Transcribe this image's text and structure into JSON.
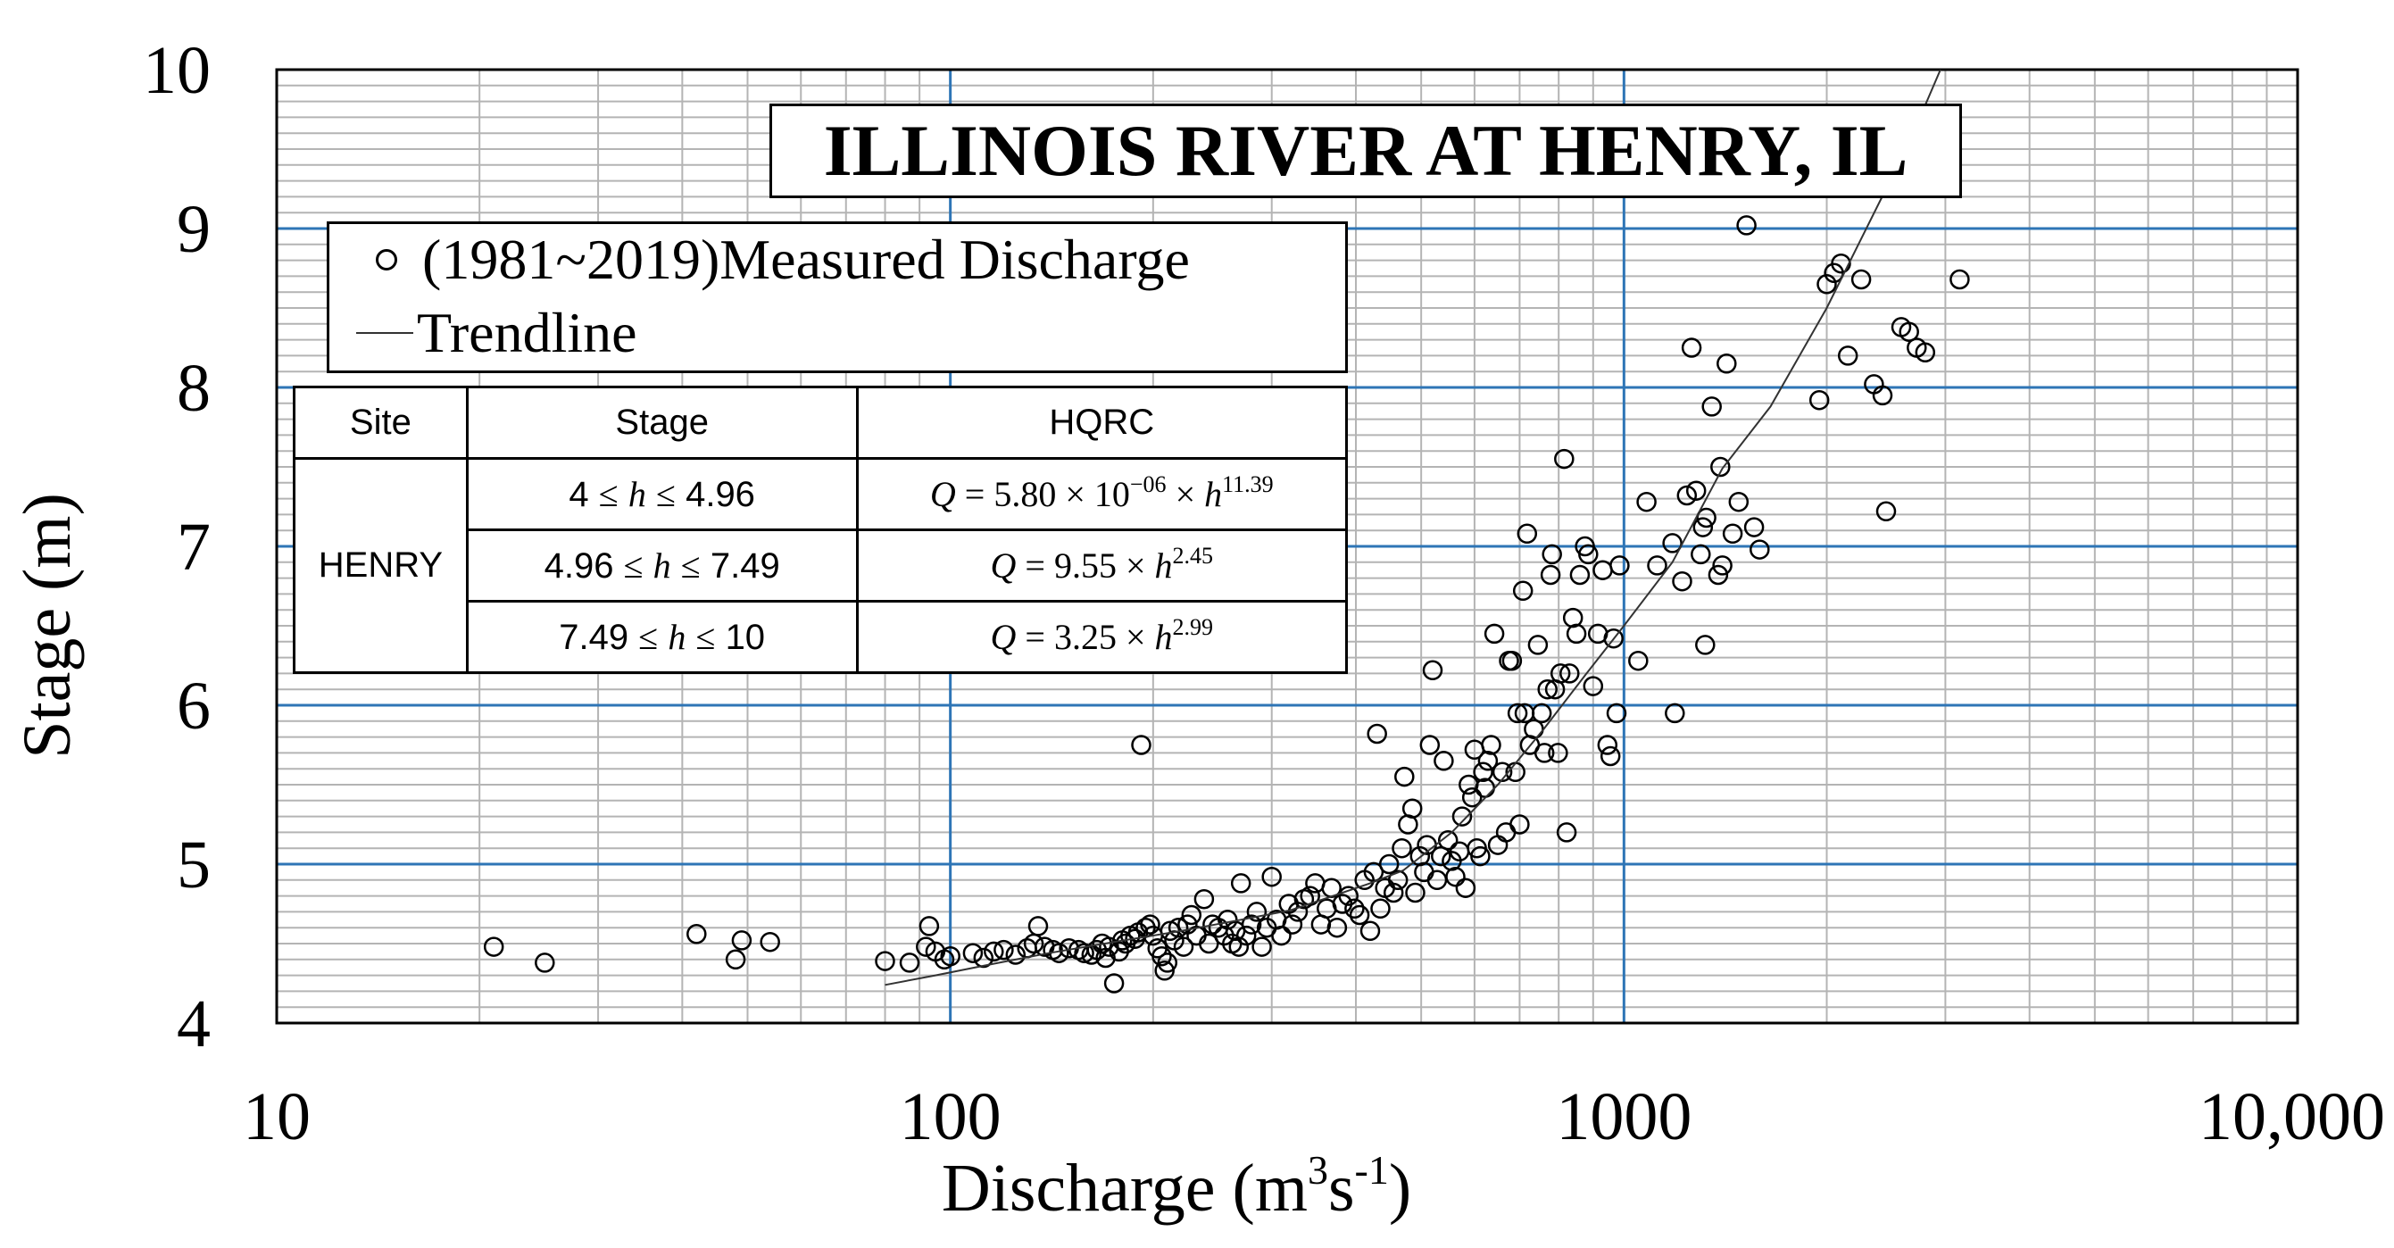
{
  "chart_data": {
    "type": "scatter",
    "title": "ILLINOIS RIVER AT HENRY, IL",
    "xlabel": "Discharge (m³s⁻¹)",
    "xlabel_parts": {
      "main": "Discharge (m",
      "sup1": "3",
      "mid": "s",
      "sup2": "-1",
      "end": ")"
    },
    "ylabel": "Stage (m)",
    "xscale": "log",
    "xlim": [
      10,
      10000
    ],
    "ylim": [
      4,
      10
    ],
    "x_ticks": [
      {
        "value": 10,
        "label": "10"
      },
      {
        "value": 100,
        "label": "100"
      },
      {
        "value": 1000,
        "label": "1000"
      },
      {
        "value": 10000,
        "label": "10,000"
      }
    ],
    "y_ticks": [
      {
        "value": 4,
        "label": "4"
      },
      {
        "value": 5,
        "label": "5"
      },
      {
        "value": 6,
        "label": "6"
      },
      {
        "value": 7,
        "label": "7"
      },
      {
        "value": 8,
        "label": "8"
      },
      {
        "value": 9,
        "label": "9"
      },
      {
        "value": 10,
        "label": "10"
      }
    ],
    "grid": true,
    "minor_y_step": 0.1,
    "colors": {
      "major_grid": "#2e75b6",
      "minor_grid": "#b4b4b4",
      "marker": "#000000",
      "trendline": "#333333"
    },
    "legend_position": "upper-left",
    "series": [
      {
        "name": "(1981~2019)Measured Discharge",
        "kind": "scatter",
        "points": [
          [
            21,
            4.48
          ],
          [
            25,
            4.38
          ],
          [
            42,
            4.56
          ],
          [
            48,
            4.4
          ],
          [
            49,
            4.52
          ],
          [
            54,
            4.51
          ],
          [
            80,
            4.39
          ],
          [
            87,
            4.38
          ],
          [
            92,
            4.48
          ],
          [
            93,
            4.61
          ],
          [
            95,
            4.45
          ],
          [
            98,
            4.4
          ],
          [
            100,
            4.42
          ],
          [
            108,
            4.44
          ],
          [
            112,
            4.41
          ],
          [
            116,
            4.45
          ],
          [
            120,
            4.46
          ],
          [
            125,
            4.43
          ],
          [
            130,
            4.47
          ],
          [
            133,
            4.5
          ],
          [
            135,
            4.61
          ],
          [
            138,
            4.48
          ],
          [
            142,
            4.46
          ],
          [
            145,
            4.44
          ],
          [
            150,
            4.47
          ],
          [
            155,
            4.46
          ],
          [
            158,
            4.44
          ],
          [
            162,
            4.43
          ],
          [
            165,
            4.46
          ],
          [
            168,
            4.5
          ],
          [
            170,
            4.41
          ],
          [
            172,
            4.48
          ],
          [
            175,
            4.25
          ],
          [
            178,
            4.45
          ],
          [
            180,
            4.52
          ],
          [
            182,
            4.5
          ],
          [
            185,
            4.55
          ],
          [
            188,
            4.53
          ],
          [
            190,
            4.57
          ],
          [
            192,
            5.75
          ],
          [
            195,
            4.6
          ],
          [
            198,
            4.62
          ],
          [
            200,
            4.55
          ],
          [
            203,
            4.47
          ],
          [
            206,
            4.42
          ],
          [
            208,
            4.33
          ],
          [
            210,
            4.38
          ],
          [
            212,
            4.58
          ],
          [
            215,
            4.52
          ],
          [
            218,
            4.6
          ],
          [
            222,
            4.48
          ],
          [
            225,
            4.62
          ],
          [
            228,
            4.68
          ],
          [
            232,
            4.55
          ],
          [
            238,
            4.78
          ],
          [
            242,
            4.5
          ],
          [
            245,
            4.62
          ],
          [
            250,
            4.6
          ],
          [
            255,
            4.55
          ],
          [
            258,
            4.65
          ],
          [
            262,
            4.5
          ],
          [
            265,
            4.58
          ],
          [
            268,
            4.48
          ],
          [
            270,
            4.88
          ],
          [
            275,
            4.55
          ],
          [
            280,
            4.62
          ],
          [
            285,
            4.7
          ],
          [
            290,
            4.48
          ],
          [
            295,
            4.6
          ],
          [
            300,
            4.92
          ],
          [
            305,
            4.65
          ],
          [
            310,
            4.55
          ],
          [
            318,
            4.75
          ],
          [
            322,
            4.62
          ],
          [
            328,
            4.7
          ],
          [
            335,
            4.78
          ],
          [
            342,
            4.8
          ],
          [
            348,
            4.88
          ],
          [
            355,
            4.62
          ],
          [
            362,
            4.72
          ],
          [
            368,
            4.85
          ],
          [
            375,
            4.6
          ],
          [
            382,
            4.75
          ],
          [
            390,
            4.8
          ],
          [
            398,
            4.72
          ],
          [
            405,
            4.68
          ],
          [
            412,
            4.9
          ],
          [
            420,
            4.58
          ],
          [
            425,
            4.95
          ],
          [
            430,
            5.82
          ],
          [
            435,
            4.72
          ],
          [
            442,
            4.85
          ],
          [
            448,
            5.0
          ],
          [
            455,
            4.82
          ],
          [
            462,
            4.9
          ],
          [
            468,
            5.1
          ],
          [
            472,
            5.55
          ],
          [
            478,
            5.25
          ],
          [
            485,
            5.35
          ],
          [
            490,
            4.82
          ],
          [
            498,
            5.05
          ],
          [
            505,
            4.95
          ],
          [
            510,
            5.12
          ],
          [
            515,
            5.75
          ],
          [
            520,
            6.22
          ],
          [
            528,
            4.9
          ],
          [
            535,
            5.05
          ],
          [
            540,
            5.65
          ],
          [
            548,
            5.15
          ],
          [
            555,
            5.02
          ],
          [
            562,
            4.92
          ],
          [
            570,
            5.08
          ],
          [
            575,
            5.3
          ],
          [
            582,
            4.85
          ],
          [
            588,
            5.5
          ],
          [
            595,
            5.42
          ],
          [
            600,
            5.72
          ],
          [
            605,
            5.1
          ],
          [
            612,
            5.05
          ],
          [
            618,
            5.58
          ],
          [
            622,
            5.48
          ],
          [
            628,
            5.65
          ],
          [
            635,
            5.75
          ],
          [
            642,
            6.45
          ],
          [
            650,
            5.12
          ],
          [
            660,
            5.58
          ],
          [
            668,
            5.2
          ],
          [
            675,
            6.28
          ],
          [
            682,
            6.28
          ],
          [
            690,
            5.58
          ],
          [
            695,
            5.95
          ],
          [
            700,
            5.25
          ],
          [
            708,
            6.72
          ],
          [
            712,
            5.95
          ],
          [
            718,
            7.08
          ],
          [
            725,
            5.75
          ],
          [
            735,
            5.85
          ],
          [
            745,
            6.38
          ],
          [
            755,
            5.95
          ],
          [
            762,
            5.7
          ],
          [
            770,
            6.1
          ],
          [
            778,
            6.82
          ],
          [
            782,
            6.95
          ],
          [
            790,
            6.1
          ],
          [
            798,
            5.7
          ],
          [
            805,
            6.2
          ],
          [
            815,
            7.55
          ],
          [
            822,
            5.2
          ],
          [
            830,
            6.2
          ],
          [
            840,
            6.55
          ],
          [
            850,
            6.45
          ],
          [
            860,
            6.82
          ],
          [
            875,
            7.0
          ],
          [
            885,
            6.95
          ],
          [
            900,
            6.12
          ],
          [
            915,
            6.45
          ],
          [
            930,
            6.85
          ],
          [
            945,
            5.75
          ],
          [
            955,
            5.68
          ],
          [
            965,
            6.42
          ],
          [
            975,
            5.95
          ],
          [
            985,
            6.88
          ],
          [
            1050,
            6.28
          ],
          [
            1080,
            7.28
          ],
          [
            1120,
            6.88
          ],
          [
            1180,
            7.02
          ],
          [
            1190,
            5.95
          ],
          [
            1220,
            6.78
          ],
          [
            1240,
            7.32
          ],
          [
            1260,
            8.25
          ],
          [
            1280,
            7.35
          ],
          [
            1300,
            6.95
          ],
          [
            1310,
            7.12
          ],
          [
            1320,
            6.38
          ],
          [
            1325,
            7.18
          ],
          [
            1350,
            7.88
          ],
          [
            1380,
            6.82
          ],
          [
            1390,
            7.5
          ],
          [
            1400,
            6.88
          ],
          [
            1420,
            8.15
          ],
          [
            1450,
            7.08
          ],
          [
            1480,
            7.28
          ],
          [
            1520,
            9.02
          ],
          [
            1560,
            7.12
          ],
          [
            1590,
            6.98
          ],
          [
            1950,
            7.92
          ],
          [
            2000,
            8.65
          ],
          [
            2050,
            8.72
          ],
          [
            2100,
            8.78
          ],
          [
            2150,
            8.2
          ],
          [
            2250,
            8.68
          ],
          [
            2350,
            8.02
          ],
          [
            2420,
            7.95
          ],
          [
            2450,
            7.22
          ],
          [
            2580,
            8.38
          ],
          [
            2650,
            8.35
          ],
          [
            2720,
            8.25
          ],
          [
            2800,
            8.22
          ],
          [
            3150,
            8.68
          ]
        ]
      },
      {
        "name": "Trendline",
        "kind": "line",
        "points": [
          [
            80,
            4.24
          ],
          [
            95,
            4.3
          ],
          [
            115,
            4.37
          ],
          [
            140,
            4.44
          ],
          [
            175,
            4.51
          ],
          [
            220,
            4.58
          ],
          [
            270,
            4.65
          ],
          [
            320,
            4.71
          ],
          [
            370,
            4.8
          ],
          [
            420,
            4.88
          ],
          [
            470,
            4.96
          ],
          [
            555,
            5.2
          ],
          [
            650,
            5.5
          ],
          [
            760,
            5.85
          ],
          [
            880,
            6.2
          ],
          [
            1000,
            6.5
          ],
          [
            1180,
            6.9
          ],
          [
            1400,
            7.49
          ],
          [
            1650,
            7.88
          ],
          [
            2000,
            8.5
          ],
          [
            2450,
            9.25
          ],
          [
            2700,
            9.62
          ],
          [
            2950,
            10.0
          ]
        ]
      }
    ],
    "table": {
      "headers": [
        "Site",
        "Stage",
        "HQRC"
      ],
      "site": "HENRY",
      "rows": [
        {
          "stage": {
            "lo": "4",
            "var": "h",
            "hi": "4.96"
          },
          "hqrc": {
            "lhs": "Q",
            "coef": "5.80 × 10",
            "coef_sup": "−06",
            "var": "h",
            "exp": "11.39"
          }
        },
        {
          "stage": {
            "lo": "4.96",
            "var": "h",
            "hi": "7.49"
          },
          "hqrc": {
            "lhs": "Q",
            "coef": "9.55",
            "coef_sup": "",
            "var": "h",
            "exp": "2.45"
          }
        },
        {
          "stage": {
            "lo": "7.49",
            "var": "h",
            "hi": "10"
          },
          "hqrc": {
            "lhs": "Q",
            "coef": "3.25",
            "coef_sup": "",
            "var": "h",
            "exp": "2.99"
          }
        }
      ]
    }
  }
}
